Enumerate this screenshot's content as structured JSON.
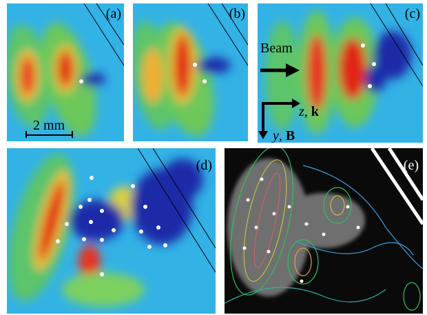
{
  "panels": [
    "(a)",
    "(b)",
    "(c)",
    "(d)",
    "(e)"
  ],
  "scale_bar": "2 mm",
  "beam_label": "Beam",
  "axis_horizontal": {
    "italic": "z",
    "separator": ", ",
    "bold": "k"
  },
  "axis_vertical": {
    "italic": "y",
    "separator": ", ",
    "bold": "B"
  }
}
